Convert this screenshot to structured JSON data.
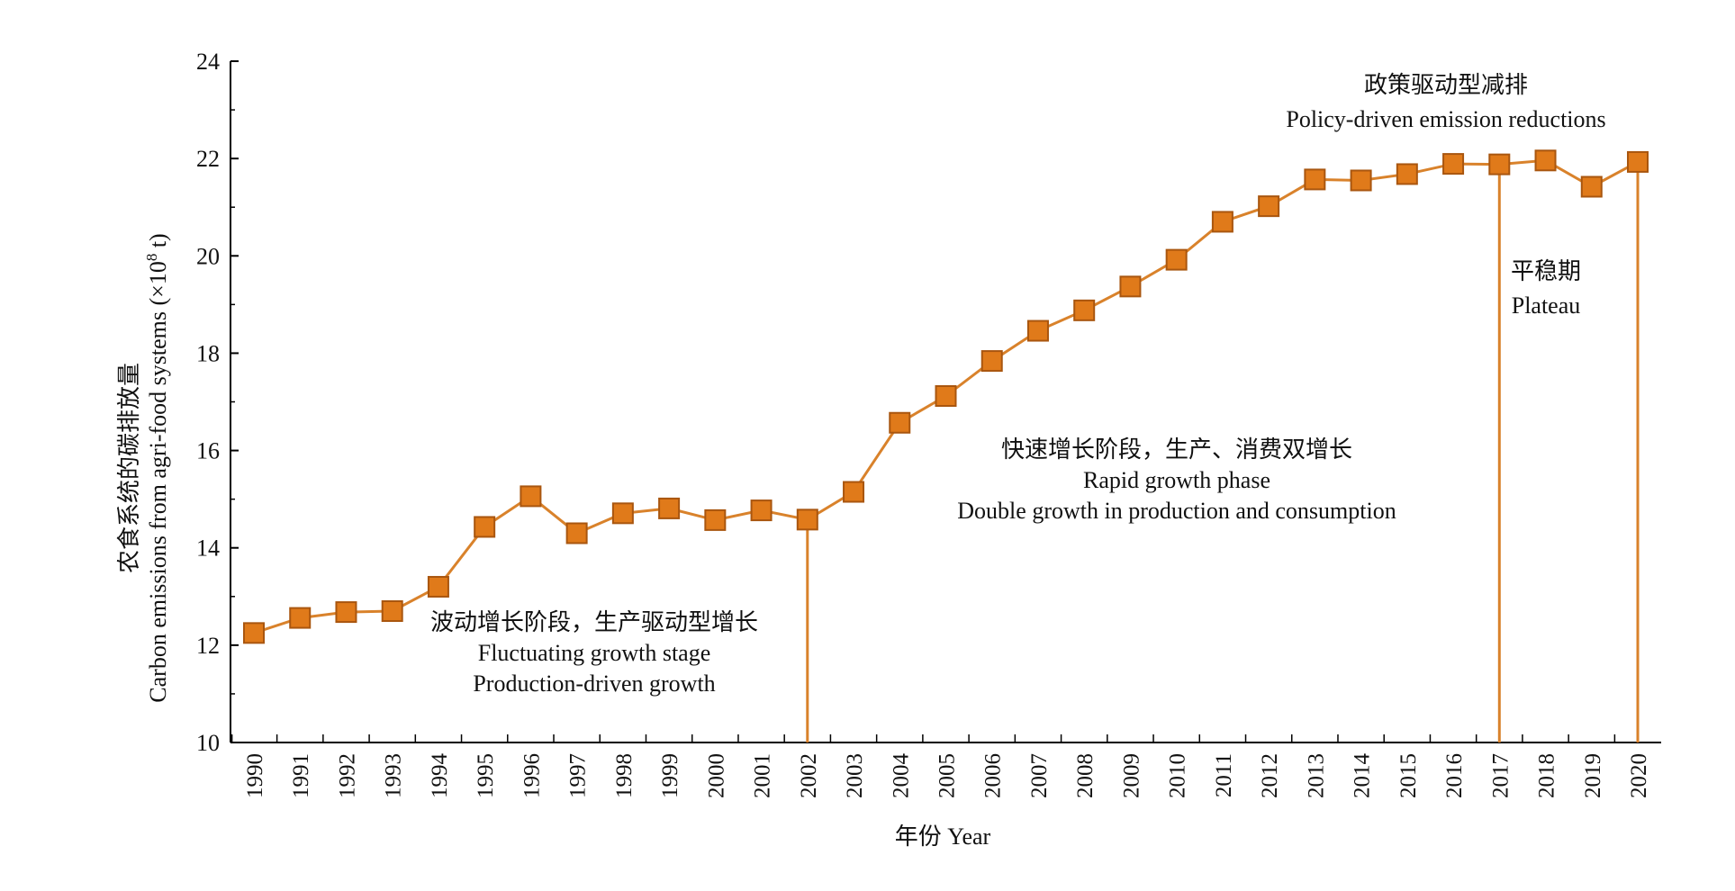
{
  "chart_data": {
    "type": "line",
    "title": "",
    "xlabel": "年份 Year",
    "ylabel_cn": "农食系统的碳排放量",
    "ylabel_en_prefix": "Carbon emissions from agri-food systems (×10",
    "ylabel_en_exp": "8",
    "ylabel_en_suffix": " t)",
    "ylim": [
      10,
      24
    ],
    "yticks": [
      10,
      12,
      14,
      16,
      18,
      20,
      22,
      24
    ],
    "grid": false,
    "x": [
      "1990",
      "1991",
      "1992",
      "1993",
      "1994",
      "1995",
      "1996",
      "1997",
      "1998",
      "1999",
      "2000",
      "2001",
      "2002",
      "2003",
      "2004",
      "2005",
      "2006",
      "2007",
      "2008",
      "2009",
      "2010",
      "2011",
      "2012",
      "2013",
      "2014",
      "2015",
      "2016",
      "2017",
      "2018",
      "2019",
      "2020"
    ],
    "values": [
      12.25,
      12.56,
      12.68,
      12.7,
      13.2,
      14.43,
      15.06,
      14.3,
      14.71,
      14.81,
      14.57,
      14.77,
      14.58,
      15.15,
      16.57,
      17.12,
      17.84,
      18.46,
      18.88,
      19.37,
      19.92,
      20.7,
      21.02,
      21.57,
      21.55,
      21.68,
      21.89,
      21.88,
      21.96,
      21.42,
      21.93
    ],
    "separators": [
      "2002",
      "2017",
      "2020"
    ],
    "annotations": [
      {
        "lines": [
          "波动增长阶段，生产驱动型增长",
          "Fluctuating growth stage",
          "Production-driven growth"
        ]
      },
      {
        "lines": [
          "快速增长阶段，生产、消费双增长",
          "Rapid growth phase",
          "Double growth in production and consumption"
        ]
      },
      {
        "lines": [
          "政策驱动型减排",
          "Policy-driven emission reductions"
        ]
      },
      {
        "lines": [
          "平稳期",
          "Plateau"
        ]
      }
    ],
    "colors": {
      "line": "#d9822b",
      "marker_fill": "#e07a1a",
      "marker_edge": "#a9560f",
      "axis": "#000000"
    }
  }
}
